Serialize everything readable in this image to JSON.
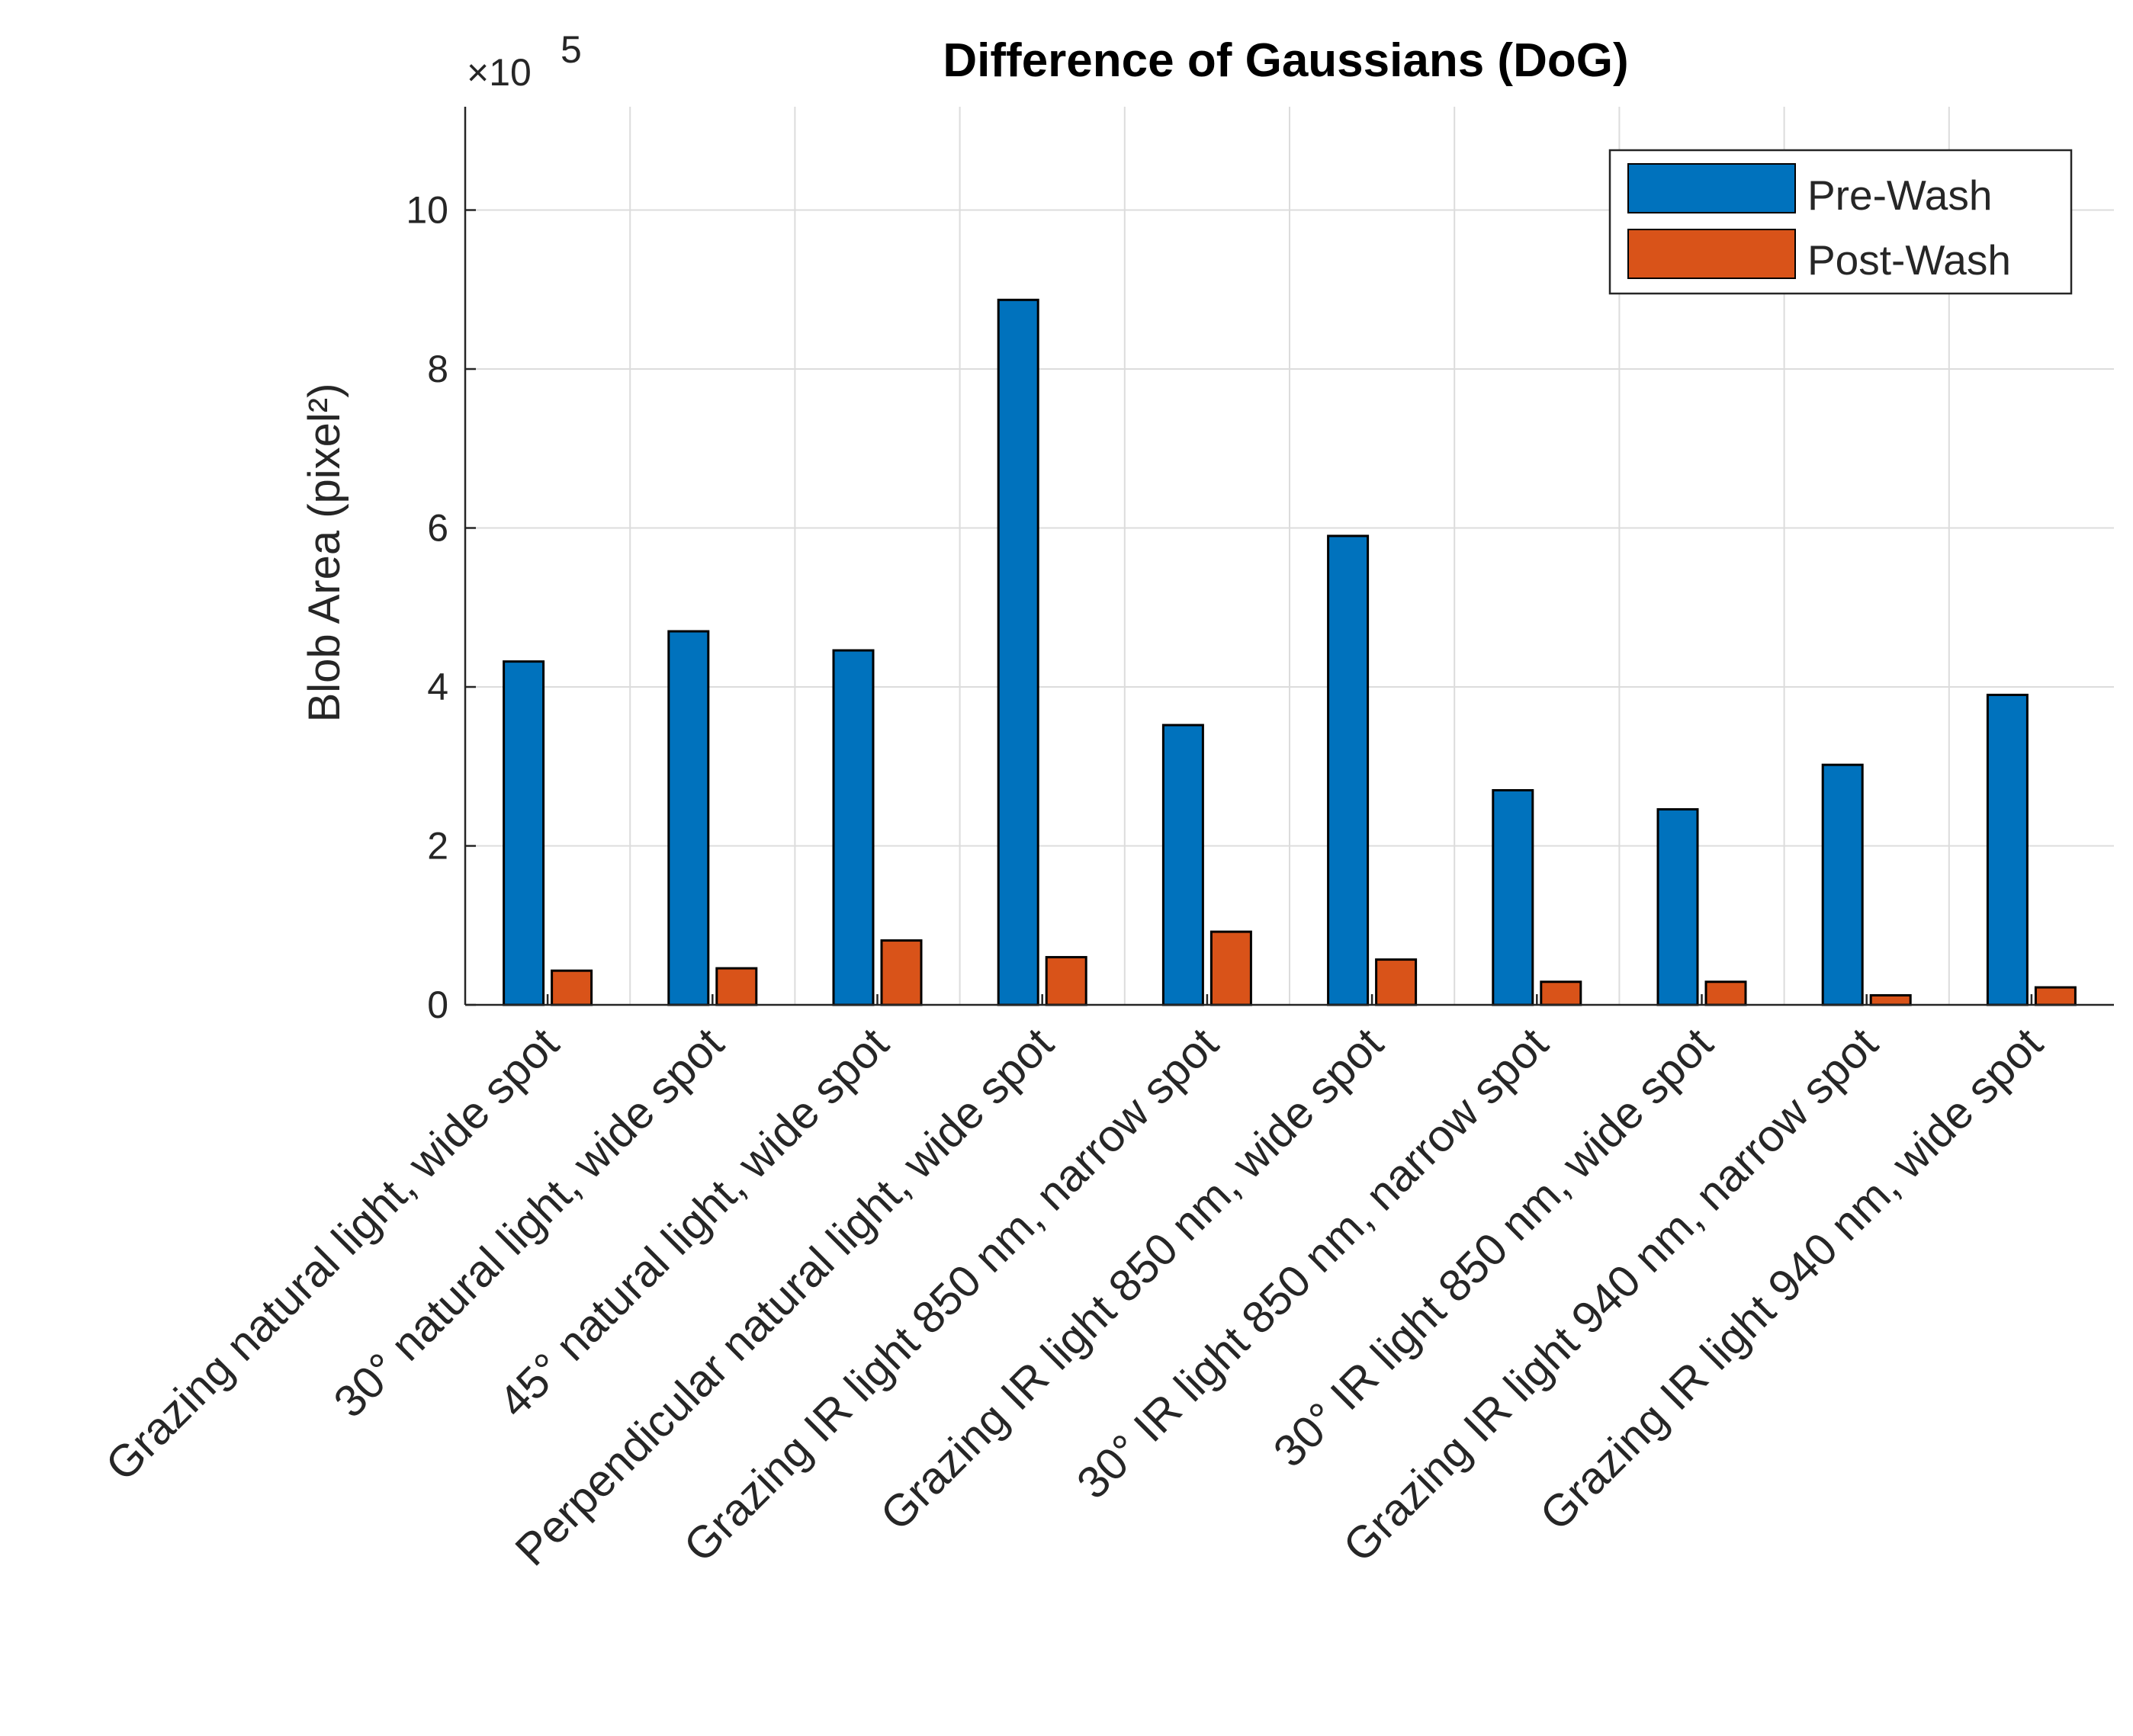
{
  "chart_data": {
    "type": "bar",
    "title": "Difference of Gaussians (DoG)",
    "xlabel": "",
    "ylabel": "Blob Area (pixel²)",
    "exponent_label": "×10",
    "exponent_power": "5",
    "scale_factor": 100000,
    "ylim": [
      0,
      1130000
    ],
    "yticks": [
      0,
      200000,
      400000,
      600000,
      800000,
      1000000
    ],
    "ytick_labels": [
      "0",
      "2",
      "4",
      "6",
      "8",
      "10"
    ],
    "grid": true,
    "legend_position": "top-right",
    "categories": [
      "Grazing natural light, wide spot",
      "30° natural light, wide spot",
      "45° natural light, wide spot",
      "Perpendicular natural light, wide spot",
      "Grazing IR light 850 nm, narrow spot",
      "Grazing IR light 850 nm, wide spot",
      "30° IR light 850 nm, narrow spot",
      "30° IR light 850 nm, wide spot",
      "Grazing IR light 940 nm, narrow spot",
      "Grazing IR light 940 nm, wide spot"
    ],
    "series": [
      {
        "name": "Pre-Wash",
        "color": "#0072BD",
        "values": [
          432000,
          470000,
          446000,
          887000,
          352000,
          590000,
          270000,
          246000,
          302000,
          390000
        ]
      },
      {
        "name": "Post-Wash",
        "color": "#D95319",
        "values": [
          43000,
          46000,
          81000,
          60000,
          92000,
          57000,
          29000,
          29000,
          12000,
          22000
        ]
      }
    ]
  }
}
